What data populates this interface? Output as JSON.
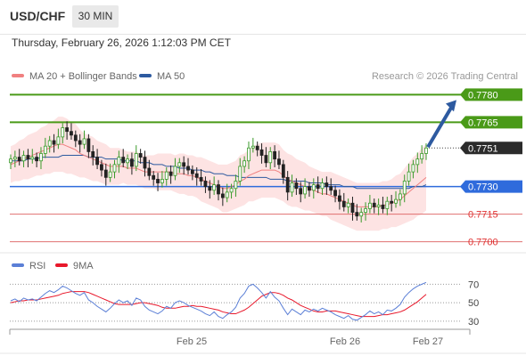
{
  "header": {
    "symbol": "USD/CHF",
    "timeframe": "30 MIN",
    "datetime": "Thursday, February 26, 2026 1:12:03 PM CET"
  },
  "legend": {
    "ma20_label": "MA 20 + Bollinger Bands",
    "ma50_label": "MA 50",
    "ma20_color": "#f08080",
    "ma50_color": "#2d5aa0",
    "research": "Research © 2026 Trading Central"
  },
  "rsi_legend": {
    "rsi_label": "RSI",
    "ma9_label": "9MA",
    "rsi_color": "#5b7fd6",
    "ma9_color": "#e8182b"
  },
  "colors": {
    "up": "#3a9a2a",
    "down": "#222222",
    "resistance": "#4a9a18",
    "support": "#e07070",
    "pivot": "#2f6bdc",
    "arrow": "#2d5aa0",
    "band_fill": "#fde3e3"
  },
  "chart_data": [
    {
      "type": "candlestick",
      "title": "",
      "yrange": [
        0.7695,
        0.7785
      ],
      "current_price": 0.7751,
      "levels": [
        {
          "value": 0.778,
          "label": "0.7780",
          "kind": "resistance",
          "badge": true
        },
        {
          "value": 0.7765,
          "label": "0.7765",
          "kind": "resistance",
          "badge": true
        },
        {
          "value": 0.7751,
          "label": "0.7751",
          "kind": "current",
          "badge": true
        },
        {
          "value": 0.773,
          "label": "0.7730",
          "kind": "pivot",
          "badge": true
        },
        {
          "value": 0.7715,
          "label": "0.7715",
          "kind": "support",
          "badge": false
        },
        {
          "value": 0.77,
          "label": "0.7700",
          "kind": "support",
          "badge": false
        }
      ],
      "x_ticks": [
        "Feb 25",
        "Feb 26",
        "Feb 27"
      ],
      "closes": [
        0.7745,
        0.7746,
        0.7744,
        0.7747,
        0.7745,
        0.7746,
        0.7744,
        0.7748,
        0.7752,
        0.7755,
        0.7753,
        0.7757,
        0.7762,
        0.776,
        0.7758,
        0.7755,
        0.7753,
        0.7756,
        0.7749,
        0.7746,
        0.7742,
        0.7739,
        0.7735,
        0.7738,
        0.7742,
        0.7746,
        0.7743,
        0.7745,
        0.7741,
        0.7748,
        0.7746,
        0.774,
        0.7736,
        0.7734,
        0.7732,
        0.7734,
        0.7738,
        0.7736,
        0.7741,
        0.7743,
        0.7741,
        0.7739,
        0.7737,
        0.7735,
        0.7733,
        0.773,
        0.7728,
        0.7731,
        0.7726,
        0.7724,
        0.7727,
        0.7729,
        0.7733,
        0.7741,
        0.7744,
        0.7751,
        0.7752,
        0.775,
        0.7747,
        0.7743,
        0.7749,
        0.7745,
        0.7742,
        0.7735,
        0.7727,
        0.7732,
        0.7729,
        0.7726,
        0.773,
        0.7728,
        0.7731,
        0.7729,
        0.7732,
        0.773,
        0.7728,
        0.7725,
        0.7722,
        0.7719,
        0.7721,
        0.7716,
        0.7714,
        0.7716,
        0.7718,
        0.7721,
        0.7719,
        0.772,
        0.7718,
        0.7722,
        0.7721,
        0.7723,
        0.7726,
        0.7733,
        0.7738,
        0.7742,
        0.7745,
        0.7748,
        0.7751
      ],
      "ma20": [
        0.7742,
        0.7743,
        0.7744,
        0.7745,
        0.7746,
        0.7747,
        0.7748,
        0.7749,
        0.775,
        0.7751,
        0.7752,
        0.7753,
        0.7753,
        0.7752,
        0.7751,
        0.775,
        0.7748,
        0.7747,
        0.7746,
        0.7745,
        0.7744,
        0.7743,
        0.7742,
        0.7741,
        0.7741,
        0.7741,
        0.7741,
        0.774,
        0.774,
        0.774,
        0.7739,
        0.7738,
        0.7738,
        0.7738,
        0.7738,
        0.7738,
        0.7738,
        0.7738,
        0.7737,
        0.7737,
        0.7737,
        0.7736,
        0.7736,
        0.7735,
        0.7734,
        0.7733,
        0.7732,
        0.7731,
        0.773,
        0.7729,
        0.7729,
        0.773,
        0.7731,
        0.7733,
        0.7734,
        0.7736,
        0.7737,
        0.7738,
        0.7739,
        0.7739,
        0.7739,
        0.7739,
        0.7738,
        0.7736,
        0.7734,
        0.7733,
        0.7732,
        0.7731,
        0.773,
        0.7729,
        0.7728,
        0.7727,
        0.7726,
        0.7726,
        0.7725,
        0.7724,
        0.7723,
        0.7722,
        0.7721,
        0.772,
        0.7719,
        0.7719,
        0.7719,
        0.7719,
        0.7719,
        0.7719,
        0.772,
        0.772,
        0.7721,
        0.7722,
        0.7723,
        0.7725,
        0.7727,
        0.7729,
        0.7731,
        0.7733,
        0.7735
      ],
      "ma50": [
        0.7744,
        0.7744,
        0.7744,
        0.7744,
        0.7745,
        0.7745,
        0.7745,
        0.7746,
        0.7746,
        0.7746,
        0.7746,
        0.7746,
        0.7747,
        0.7747,
        0.7747,
        0.7747,
        0.7747,
        0.7747,
        0.7746,
        0.7746,
        0.7746,
        0.7746,
        0.7745,
        0.7745,
        0.7745,
        0.7745,
        0.7744,
        0.7744,
        0.7744,
        0.7744,
        0.7743,
        0.7743,
        0.7743,
        0.7742,
        0.7742,
        0.7742,
        0.7741,
        0.7741,
        0.7741,
        0.774,
        0.774,
        0.774,
        0.7739,
        0.7739,
        0.7739,
        0.7738,
        0.7738,
        0.7737,
        0.7737,
        0.7737,
        0.7736,
        0.7736,
        0.7736,
        0.7735,
        0.7735,
        0.7735,
        0.7735,
        0.7735,
        0.7735,
        0.7735,
        0.7734,
        0.7734,
        0.7734,
        0.7734,
        0.7733,
        0.7733,
        0.7733,
        0.7733,
        0.7733,
        0.7732,
        0.7732,
        0.7732,
        0.7732,
        0.7731,
        0.7731,
        0.7731,
        0.7731,
        0.773,
        0.773,
        0.773,
        0.7729,
        0.7729,
        0.7729,
        0.7729,
        0.7729,
        0.7729,
        0.7729,
        0.7729,
        0.7729,
        0.7729,
        0.7729,
        0.7729,
        0.7729,
        0.773,
        0.773,
        0.773,
        0.7731
      ],
      "band_half_width": [
        0.001,
        0.001,
        0.0011,
        0.0011,
        0.0012,
        0.0012,
        0.0012,
        0.0013,
        0.0013,
        0.0014,
        0.0014,
        0.0015,
        0.0015,
        0.0015,
        0.0014,
        0.0014,
        0.0013,
        0.0012,
        0.0012,
        0.0012,
        0.0011,
        0.0011,
        0.0011,
        0.001,
        0.001,
        0.001,
        0.0009,
        0.0009,
        0.0009,
        0.0009,
        0.0009,
        0.0009,
        0.0009,
        0.0009,
        0.001,
        0.001,
        0.001,
        0.001,
        0.001,
        0.0011,
        0.0011,
        0.0011,
        0.0011,
        0.0011,
        0.0012,
        0.0012,
        0.0012,
        0.0012,
        0.0012,
        0.0013,
        0.0013,
        0.0013,
        0.0013,
        0.0014,
        0.0014,
        0.0014,
        0.0015,
        0.0015,
        0.0015,
        0.0015,
        0.0015,
        0.0015,
        0.0015,
        0.0014,
        0.0014,
        0.0014,
        0.0013,
        0.0013,
        0.0013,
        0.0012,
        0.0012,
        0.0012,
        0.0012,
        0.0012,
        0.0013,
        0.0013,
        0.0013,
        0.0013,
        0.0013,
        0.0013,
        0.0013,
        0.0013,
        0.0013,
        0.0013,
        0.0013,
        0.0013,
        0.0013,
        0.0013,
        0.0013,
        0.0014,
        0.0014,
        0.0015,
        0.0016,
        0.0017,
        0.0017,
        0.0018,
        0.0018
      ]
    },
    {
      "type": "line",
      "title": "RSI",
      "ylim": [
        25,
        80
      ],
      "y_ticks": [
        70,
        50,
        30
      ],
      "series": [
        {
          "name": "RSI",
          "values": [
            52,
            54,
            51,
            55,
            53,
            54,
            52,
            56,
            60,
            63,
            61,
            64,
            68,
            66,
            63,
            60,
            58,
            61,
            53,
            50,
            46,
            43,
            40,
            44,
            49,
            53,
            50,
            52,
            47,
            55,
            53,
            46,
            42,
            40,
            38,
            41,
            46,
            44,
            50,
            52,
            50,
            47,
            45,
            43,
            41,
            38,
            36,
            40,
            35,
            33,
            37,
            40,
            45,
            55,
            60,
            68,
            70,
            66,
            61,
            55,
            62,
            56,
            52,
            44,
            37,
            43,
            40,
            37,
            42,
            40,
            43,
            41,
            44,
            42,
            40,
            37,
            35,
            33,
            36,
            32,
            31,
            34,
            37,
            41,
            38,
            40,
            37,
            42,
            41,
            44,
            48,
            56,
            61,
            65,
            68,
            70,
            72
          ]
        },
        {
          "name": "9MA",
          "values": [
            50,
            51,
            52,
            52,
            53,
            53,
            53,
            54,
            55,
            56,
            57,
            58,
            60,
            61,
            62,
            62,
            62,
            62,
            61,
            59,
            57,
            55,
            53,
            51,
            49,
            48,
            48,
            48,
            48,
            49,
            50,
            50,
            49,
            48,
            47,
            45,
            44,
            44,
            44,
            45,
            46,
            46,
            47,
            46,
            46,
            45,
            44,
            43,
            42,
            40,
            39,
            38,
            38,
            40,
            42,
            45,
            49,
            53,
            57,
            59,
            61,
            61,
            60,
            58,
            55,
            53,
            50,
            47,
            45,
            43,
            41,
            40,
            40,
            41,
            41,
            41,
            40,
            39,
            38,
            37,
            36,
            35,
            35,
            35,
            35,
            36,
            37,
            37,
            38,
            39,
            40,
            42,
            45,
            48,
            51,
            55,
            59
          ]
        }
      ]
    }
  ]
}
